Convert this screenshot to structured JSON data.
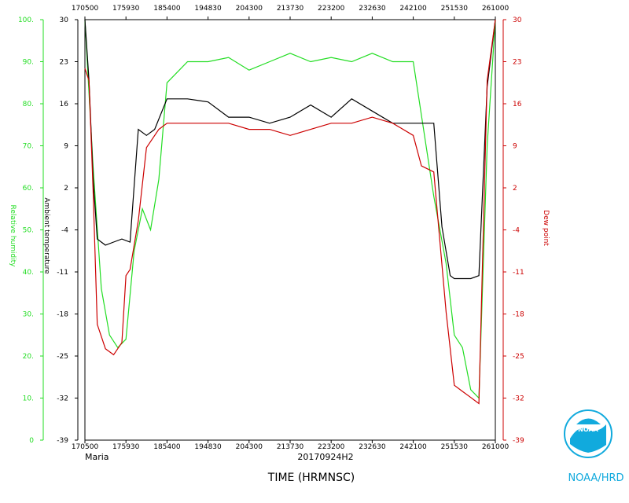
{
  "chart_data": {
    "type": "line",
    "storm": "Maria",
    "flight_id": "20170924H2",
    "xlabel": "TIME (HRMNSC)",
    "x_ticks": [
      "170500",
      "175930",
      "185400",
      "194830",
      "204300",
      "213730",
      "223200",
      "232630",
      "242100",
      "251530",
      "261000"
    ],
    "axes": {
      "rh": {
        "label": "Relative humidity",
        "ticks": [
          "0",
          "10.",
          "20.",
          "30.",
          "40.",
          "50.",
          "60.",
          "70.",
          "80.",
          "90.",
          "100."
        ],
        "range": [
          0,
          100
        ],
        "color": "#22dd22"
      },
      "temp": {
        "label": "Ambient temperature",
        "ticks": [
          "-39",
          "-32",
          "-25",
          "-18",
          "-11",
          "-4",
          "2",
          "9",
          "16",
          "23",
          "30"
        ],
        "range": [
          -39,
          30
        ],
        "color": "#000000"
      },
      "dew": {
        "label": "Dew point",
        "ticks": [
          "-39",
          "-32",
          "-25",
          "-18",
          "-11",
          "-4",
          "2",
          "9",
          "16",
          "23",
          "30"
        ],
        "range": [
          -39,
          30
        ],
        "color": "#cc0000"
      }
    },
    "series": [
      {
        "name": "Relative humidity",
        "axis": "rh",
        "color": "#22dd22",
        "x": [
          0,
          0.02,
          0.04,
          0.06,
          0.08,
          0.1,
          0.12,
          0.14,
          0.16,
          0.18,
          0.2,
          0.25,
          0.3,
          0.35,
          0.4,
          0.45,
          0.5,
          0.55,
          0.6,
          0.65,
          0.7,
          0.75,
          0.8,
          0.85,
          0.88,
          0.9,
          0.92,
          0.94,
          0.96,
          0.98,
          1
        ],
        "values": [
          100,
          65,
          36,
          25,
          22,
          24,
          45,
          55,
          50,
          62,
          85,
          90,
          90,
          91,
          88,
          90,
          92,
          90,
          91,
          90,
          92,
          90,
          90,
          58,
          42,
          25,
          22,
          12,
          10,
          70,
          100
        ]
      },
      {
        "name": "Ambient temperature",
        "axis": "temp",
        "color": "#000000",
        "x": [
          0,
          0.01,
          0.02,
          0.03,
          0.05,
          0.07,
          0.09,
          0.11,
          0.13,
          0.15,
          0.17,
          0.2,
          0.25,
          0.3,
          0.35,
          0.4,
          0.45,
          0.5,
          0.55,
          0.6,
          0.65,
          0.7,
          0.75,
          0.8,
          0.85,
          0.87,
          0.89,
          0.9,
          0.92,
          0.94,
          0.96,
          0.98,
          1
        ],
        "values": [
          30,
          20,
          4,
          -6,
          -7,
          -6.5,
          -6,
          -6.5,
          12,
          11,
          12,
          17,
          17,
          16.5,
          14,
          14,
          13,
          14,
          16,
          14,
          17,
          15,
          13,
          13,
          13,
          -4,
          -12,
          -12.5,
          -12.5,
          -12.5,
          -12,
          19,
          30
        ]
      },
      {
        "name": "Dew point",
        "axis": "dew",
        "color": "#cc0000",
        "x": [
          0,
          0.01,
          0.02,
          0.03,
          0.05,
          0.07,
          0.09,
          0.1,
          0.11,
          0.13,
          0.15,
          0.18,
          0.2,
          0.25,
          0.3,
          0.35,
          0.4,
          0.45,
          0.5,
          0.55,
          0.6,
          0.65,
          0.7,
          0.75,
          0.8,
          0.82,
          0.85,
          0.88,
          0.9,
          0.92,
          0.94,
          0.96,
          0.98,
          1
        ],
        "values": [
          22,
          20,
          2,
          -20,
          -24,
          -25,
          -23,
          -12,
          -11,
          -3,
          9,
          12,
          13,
          13,
          13,
          13,
          12,
          12,
          11,
          12,
          13,
          13,
          14,
          13,
          11,
          6,
          5,
          -18,
          -30,
          -31,
          -32,
          -33,
          20,
          30
        ]
      }
    ],
    "grid": false
  },
  "footer": {
    "left_label": "Maria",
    "center_label": "20170924H2",
    "xaxis_title": "TIME (HRMNSC)",
    "logo_text": "NOAA",
    "credit": "NOAA/HRD"
  },
  "colors": {
    "rh": "#22dd22",
    "temp": "#000000",
    "dew": "#cc0000",
    "frame": "#000000"
  }
}
